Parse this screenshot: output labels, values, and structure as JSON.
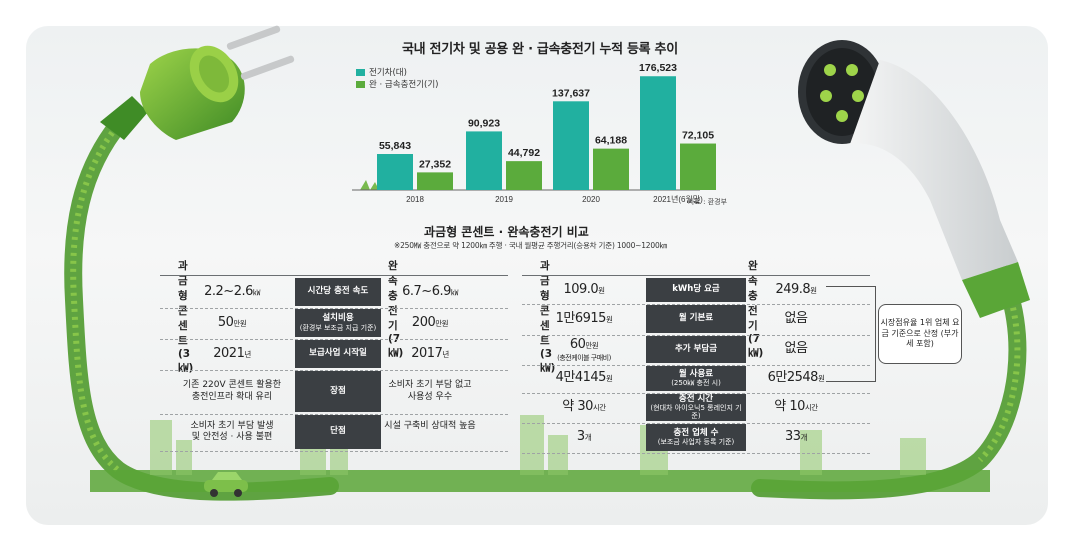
{
  "chart_data": {
    "type": "bar",
    "title": "국내 전기차 및 공용 완 · 급속충전기 누적 등록 추이",
    "categories": [
      "2018",
      "2019",
      "2020",
      "2021년(6월말)"
    ],
    "series": [
      {
        "name": "전기차(대)",
        "values": [
          55843,
          90923,
          137637,
          176523
        ],
        "labels": [
          "55,843",
          "90,923",
          "137,637",
          "176,523"
        ]
      },
      {
        "name": "완 · 급속충전기(기)",
        "values": [
          27352,
          44792,
          64188,
          72105
        ],
        "labels": [
          "27,352",
          "44,792",
          "64,188",
          "72,105"
        ]
      }
    ],
    "source": "자료 : 환경부",
    "legend_position": "top-left",
    "grid": false,
    "colors": {
      "ev": "#21b0a0",
      "charger": "#5bab3c"
    }
  },
  "comparison": {
    "title": "과금형 콘센트 · 완속충전기 비교",
    "note": "※250㎿ 충전으로 약 1200㎞ 주행 · 국내 월평균 주행거리(승용차 기준) 1000~1200㎞",
    "left_table": {
      "col_left": "과금형 콘센트(3㎾)",
      "col_right": "완속충전기(7㎾)",
      "rows": [
        {
          "label": "시간당 충전 속도",
          "label_sub": "",
          "left": "2.2~2.6",
          "left_unit": "㎾",
          "right": "6.7~6.9",
          "right_unit": "㎾"
        },
        {
          "label": "설치비용",
          "label_sub": "(환경부 보조금 지급 기준)",
          "left": "50",
          "left_unit": "만원",
          "right": "200",
          "right_unit": "만원"
        },
        {
          "label": "보급사업 시작일",
          "label_sub": "",
          "left": "2021",
          "left_unit": "년",
          "right": "2017",
          "right_unit": "년"
        },
        {
          "label": "장점",
          "label_sub": "",
          "left": "기존 220V 콘센트 활용한",
          "left2": "충전인프라 확대 유리",
          "right": "소비자 초기 부담 없고",
          "right2": "사용성 우수"
        },
        {
          "label": "단점",
          "label_sub": "",
          "left": "소비자 초기 부담 발생",
          "left2": "및 안전성 · 사용 불편",
          "right": "시설 구축비 상대적 높음",
          "right2": ""
        }
      ]
    },
    "right_table": {
      "col_left": "과금형 콘센트(3㎾)",
      "col_right": "완속충전기(7㎾)",
      "rows": [
        {
          "label": "kWh당 요금",
          "label_sub": "",
          "left": "109.0",
          "left_unit": "원",
          "left_note": "",
          "right": "249.8",
          "right_unit": "원"
        },
        {
          "label": "월 기본료",
          "label_sub": "",
          "left": "1만6915",
          "left_unit": "원",
          "left_note": "",
          "right": "없음",
          "right_unit": ""
        },
        {
          "label": "추가 부담금",
          "label_sub": "",
          "left": "60",
          "left_unit": "만원",
          "left_note": "(충전케이블 구매비)",
          "right": "없음",
          "right_unit": ""
        },
        {
          "label": "월 사용료",
          "label_sub": "(250㎾ 충전 시)",
          "left": "4만4145",
          "left_unit": "원",
          "left_note": "",
          "right": "6만2548",
          "right_unit": "원"
        },
        {
          "label": "충전 시간",
          "label_sub": "(현대차 아이오닉5 롱레인지 기준)",
          "left": "약 30",
          "left_unit": "시간",
          "left_note": "",
          "right": "약 10",
          "right_unit": "시간"
        },
        {
          "label": "충전 업체 수",
          "label_sub": "(보조금 사업자 등록 기준)",
          "left": "3",
          "left_unit": "개",
          "left_note": "",
          "right": "33",
          "right_unit": "개"
        }
      ],
      "callout": "시장점유율 1위 업체 요금 기준으로 산정 (부가세 포함)"
    }
  }
}
